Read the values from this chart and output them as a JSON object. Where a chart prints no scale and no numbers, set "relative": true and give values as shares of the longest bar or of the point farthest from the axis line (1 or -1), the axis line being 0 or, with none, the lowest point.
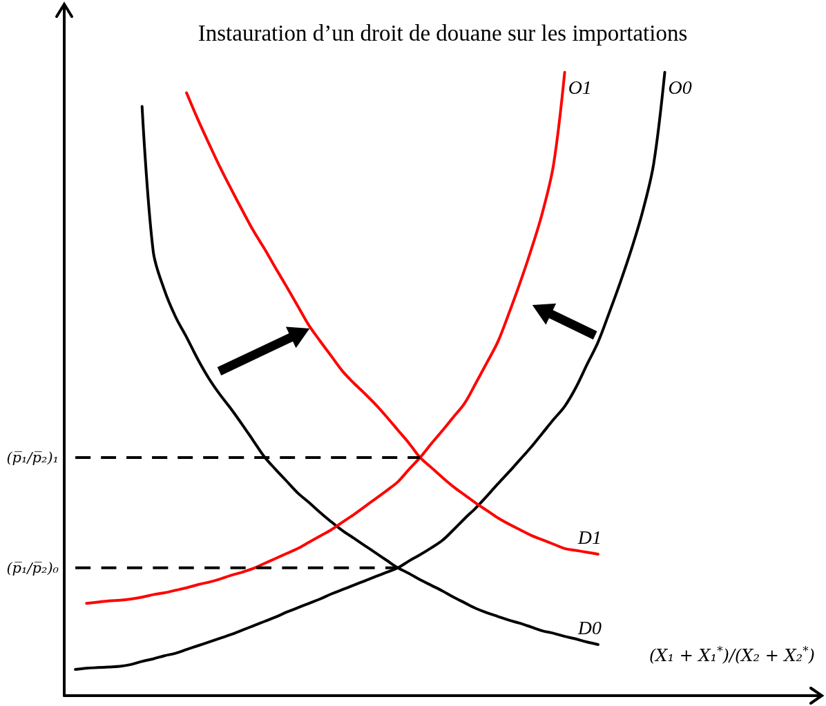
{
  "chart_data": {
    "type": "line",
    "title": "Instauration d’un droit de douane sur les importations",
    "xlabel": "(X₁ + X₁$^{*}$)/(X₂ + X₂$^{*}$)",
    "relative": true,
    "marker": "none",
    "grid": false,
    "legend": false,
    "categories": [
      null,
      null,
      null,
      null,
      null,
      null,
      null,
      null,
      null,
      null,
      null,
      null,
      null,
      null,
      null,
      null,
      null,
      null,
      null,
      null,
      null,
      null,
      null,
      null,
      null,
      null,
      null,
      null,
      null,
      null,
      null,
      null,
      null,
      null,
      null,
      null,
      null,
      null,
      null,
      null,
      null,
      null,
      null,
      null,
      null,
      null,
      null,
      null,
      null,
      null,
      null,
      null,
      null,
      null,
      null,
      null,
      null,
      null,
      null,
      null,
      null,
      null,
      null,
      null,
      null,
      null,
      null,
      null,
      null
    ],
    "series": [
      {
        "name": "D0",
        "color": "#000000",
        "values": [
          null,
          null,
          null,
          null,
          null,
          null,
          null,
          0.945,
          0.713,
          0.651,
          0.608,
          0.575,
          0.54,
          0.509,
          0.483,
          0.46,
          0.435,
          0.409,
          0.383,
          0.363,
          0.344,
          0.325,
          0.31,
          0.294,
          0.279,
          0.265,
          0.253,
          0.241,
          0.229,
          0.217,
          0.205,
          0.196,
          0.186,
          0.177,
          0.168,
          0.158,
          0.149,
          0.14,
          0.133,
          0.127,
          0.121,
          0.116,
          0.11,
          0.104,
          0.1,
          0.095,
          0.091,
          0.086,
          0.082,
          null,
          null,
          null,
          null,
          null,
          null,
          null,
          null,
          null,
          null,
          null,
          null,
          null,
          null,
          null,
          null,
          null,
          null,
          null,
          null
        ]
      },
      {
        "name": "O0",
        "color": "#000000",
        "values": [
          null,
          0.042,
          0.044,
          0.045,
          0.046,
          0.047,
          0.05,
          0.055,
          0.059,
          0.064,
          0.068,
          0.074,
          0.08,
          0.086,
          0.092,
          0.098,
          0.105,
          0.112,
          0.119,
          0.126,
          0.134,
          0.141,
          0.148,
          0.155,
          0.163,
          0.17,
          0.177,
          0.184,
          0.191,
          0.198,
          0.205,
          0.216,
          0.226,
          0.237,
          0.249,
          0.266,
          0.284,
          0.301,
          0.32,
          0.34,
          0.359,
          0.379,
          0.399,
          0.421,
          0.443,
          0.464,
          0.494,
          0.531,
          0.567,
          0.614,
          0.663,
          0.716,
          0.776,
          0.853,
          1.0,
          null,
          null,
          null,
          null,
          null,
          null,
          null,
          null,
          null,
          null,
          null,
          null,
          null,
          null
        ]
      },
      {
        "name": "D1",
        "color": "#ff0000",
        "values": [
          null,
          null,
          null,
          null,
          null,
          null,
          null,
          null,
          null,
          null,
          null,
          0.967,
          0.925,
          0.886,
          0.848,
          0.813,
          0.779,
          0.746,
          0.717,
          0.686,
          0.656,
          0.625,
          0.594,
          0.569,
          0.545,
          0.521,
          0.502,
          0.485,
          0.467,
          0.447,
          0.426,
          0.405,
          0.382,
          0.366,
          0.35,
          0.335,
          0.322,
          0.309,
          0.297,
          0.285,
          0.275,
          0.266,
          0.257,
          0.25,
          0.243,
          0.236,
          0.233,
          0.23,
          0.227,
          null,
          null,
          null,
          null,
          null,
          null,
          null,
          null,
          null,
          null,
          null,
          null,
          null,
          null,
          null,
          null,
          null,
          null,
          null,
          null
        ]
      },
      {
        "name": "O1",
        "color": "#ff0000",
        "values": [
          null,
          null,
          0.148,
          0.15,
          0.152,
          0.153,
          0.155,
          0.158,
          0.162,
          0.165,
          0.169,
          0.173,
          0.178,
          0.182,
          0.187,
          0.193,
          0.198,
          0.204,
          0.212,
          0.22,
          0.228,
          0.236,
          0.246,
          0.256,
          0.266,
          0.278,
          0.29,
          0.303,
          0.316,
          0.329,
          0.343,
          0.363,
          0.382,
          0.404,
          0.425,
          0.447,
          0.469,
          0.501,
          0.534,
          0.568,
          0.614,
          0.663,
          0.716,
          0.775,
          0.852,
          1.0,
          null,
          null,
          null,
          null,
          null,
          null,
          null,
          null,
          null,
          null,
          null,
          null,
          null,
          null,
          null,
          null,
          null,
          null,
          null,
          null,
          null,
          null,
          null
        ]
      },
      {
        "name": "(p̅₁/p̅₂)₁",
        "color": "#000000",
        "line_style": "dashed",
        "values": [
          null,
          0.382,
          0.382,
          0.382,
          0.382,
          0.382,
          0.382,
          0.382,
          0.382,
          0.382,
          0.382,
          0.382,
          0.382,
          0.382,
          0.382,
          0.382,
          0.382,
          0.382,
          0.382,
          0.382,
          0.382,
          0.382,
          0.382,
          0.382,
          0.382,
          0.382,
          0.382,
          0.382,
          0.382,
          0.382,
          0.382,
          0.382,
          0.382,
          null,
          null,
          null,
          null,
          null,
          null,
          null,
          null,
          null,
          null,
          null,
          null,
          null,
          null,
          null,
          null,
          null,
          null,
          null,
          null,
          null,
          null,
          null,
          null,
          null,
          null,
          null,
          null,
          null,
          null,
          null,
          null,
          null,
          null,
          null,
          null
        ]
      },
      {
        "name": "(p̅₁/p̅₂)₀",
        "color": "#000000",
        "line_style": "dashed",
        "values": [
          null,
          0.205,
          0.205,
          0.205,
          0.205,
          0.205,
          0.205,
          0.205,
          0.205,
          0.205,
          0.205,
          0.205,
          0.205,
          0.205,
          0.205,
          0.205,
          0.205,
          0.205,
          0.205,
          0.205,
          0.205,
          0.205,
          0.205,
          0.205,
          0.205,
          0.205,
          0.205,
          0.205,
          0.205,
          0.205,
          0.205,
          null,
          null,
          null,
          null,
          null,
          null,
          null,
          null,
          null,
          null,
          null,
          null,
          null,
          null,
          null,
          null,
          null,
          null,
          null,
          null,
          null,
          null,
          null,
          null,
          null,
          null,
          null,
          null,
          null,
          null,
          null,
          null,
          null,
          null,
          null,
          null,
          null,
          null
        ]
      }
    ]
  }
}
